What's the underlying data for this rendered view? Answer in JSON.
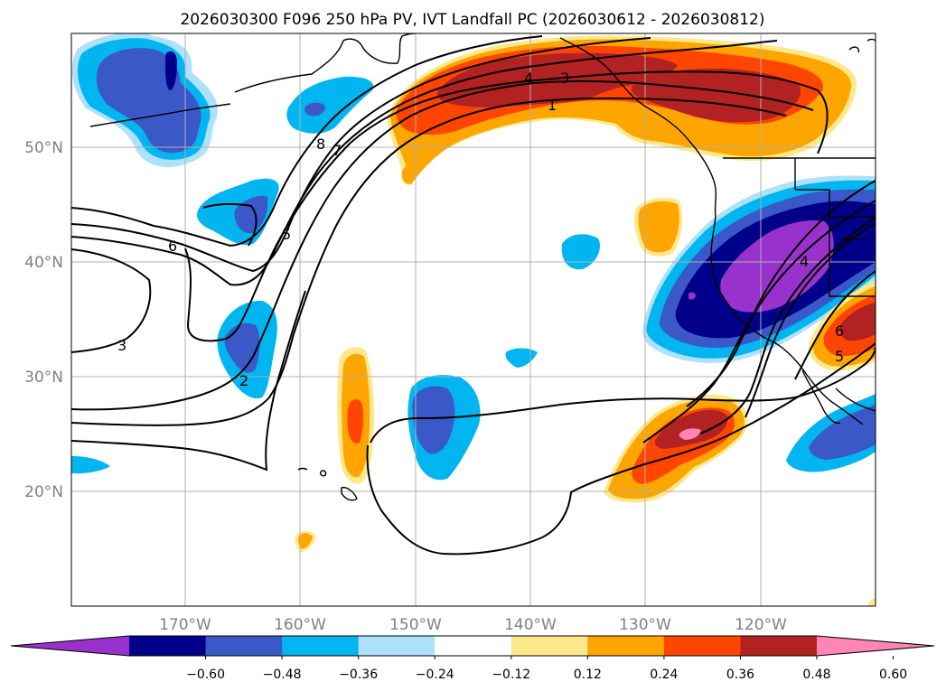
{
  "title": "2026030300 F096 250 hPa PV, IVT Landfall PC (2026030612 - 2026030812)",
  "lat_labels": [
    "50°N",
    "40°N",
    "30°N",
    "20°N"
  ],
  "lon_labels": [
    "170°W",
    "160°W",
    "150°W",
    "140°W",
    "130°W",
    "120°W"
  ],
  "colorbar": {
    "ticks": [
      "−0.60",
      "−0.48",
      "−0.36",
      "−0.24",
      "−0.12",
      "0.12",
      "0.24",
      "0.36",
      "0.48",
      "0.60"
    ],
    "colors": [
      "#9932cc",
      "#00008b",
      "#3a58c8",
      "#00b5f0",
      "#aee1fa",
      "#ffffff",
      "#fde98c",
      "#ffa500",
      "#ff4500",
      "#b22222",
      "#ff85b4"
    ]
  },
  "contour_labels": [
    "4",
    "3",
    "1",
    "8",
    "7",
    "6",
    "5",
    "3",
    "2",
    "4",
    "6",
    "5"
  ]
}
